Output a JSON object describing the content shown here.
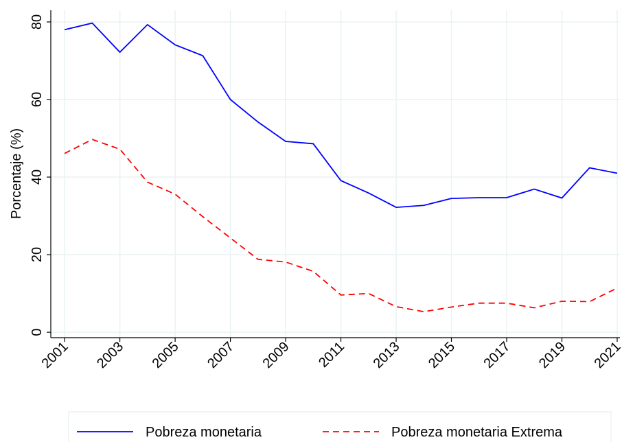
{
  "chart_data": {
    "type": "line",
    "y_label": "Porcentaje (%)",
    "x": [
      2001,
      2002,
      2003,
      2004,
      2005,
      2006,
      2007,
      2008,
      2009,
      2010,
      2011,
      2012,
      2013,
      2014,
      2015,
      2016,
      2017,
      2018,
      2019,
      2020,
      2021
    ],
    "series": [
      {
        "name": "Pobreza monetaria",
        "color": "#0000ff",
        "dash": false,
        "values": [
          78,
          79.7,
          72.2,
          79.3,
          74.1,
          71.3,
          60,
          54.2,
          49.2,
          48.6,
          39.1,
          35.9,
          32.2,
          32.7,
          34.5,
          34.7,
          34.7,
          36.9,
          34.6,
          42.4,
          41
        ]
      },
      {
        "name": "Pobreza monetaria Extrema",
        "color": "#ff0000",
        "dash": true,
        "values": [
          46.1,
          49.7,
          47.2,
          38.7,
          35.6,
          29.8,
          24.3,
          18.8,
          18.1,
          15.7,
          9.6,
          10,
          6.6,
          5.3,
          6.5,
          7.5,
          7.5,
          6.3,
          8,
          7.9,
          11.4
        ]
      }
    ],
    "xlim": [
      2000.5,
      2021.1
    ],
    "ylim": [
      -1.4,
      83
    ],
    "xticks": [
      2001,
      2003,
      2005,
      2007,
      2009,
      2011,
      2013,
      2015,
      2017,
      2019,
      2021
    ],
    "yticks": [
      0,
      20,
      40,
      60,
      80
    ],
    "grid": true,
    "legend": "bottom"
  }
}
